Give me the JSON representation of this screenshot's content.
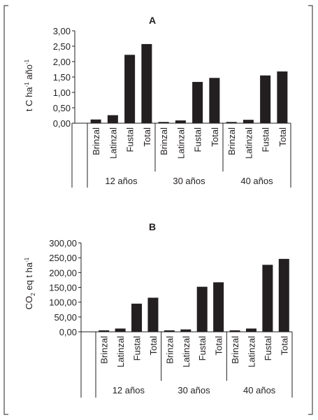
{
  "chart_data": [
    {
      "type": "bar",
      "title": "A",
      "ylabel": "t C ha-1 año-1",
      "ylabel_parts": {
        "main": "t C ha",
        "exp1": "-1",
        "mid": " año",
        "exp2": "-1"
      },
      "ylim": [
        0,
        3
      ],
      "yticks": [
        "0,00",
        "0,50",
        "1,00",
        "1,50",
        "2,00",
        "2,50",
        "3,00"
      ],
      "groups": [
        "12 años",
        "30 años",
        "40 años"
      ],
      "categories": [
        "Brinzal",
        "Latinzal",
        "Fustal",
        "Total"
      ],
      "values": [
        [
          0.12,
          0.26,
          2.22,
          2.57
        ],
        [
          0.04,
          0.09,
          1.34,
          1.47
        ],
        [
          0.04,
          0.11,
          1.55,
          1.68
        ]
      ],
      "bar_color": "#231f20",
      "grid": false
    },
    {
      "type": "bar",
      "title": "B",
      "ylabel": "CO2 eq t ha-1",
      "ylabel_parts": {
        "main": "CO",
        "sub": "2",
        "mid": " eq t  ha",
        "exp": "-1"
      },
      "ylim": [
        0,
        300
      ],
      "yticks": [
        "0,00",
        "50,00",
        "100,00",
        "150,00",
        "200,00",
        "250,00",
        "300,00"
      ],
      "groups": [
        "12 años",
        "30 años",
        "40 años"
      ],
      "categories": [
        "Brinzal",
        "Latinzal",
        "Fustal",
        "Total"
      ],
      "values": [
        [
          5,
          11,
          95,
          115
        ],
        [
          5,
          8,
          152,
          167
        ],
        [
          5,
          11,
          226,
          246
        ]
      ],
      "bar_color": "#231f20",
      "grid": false
    }
  ]
}
